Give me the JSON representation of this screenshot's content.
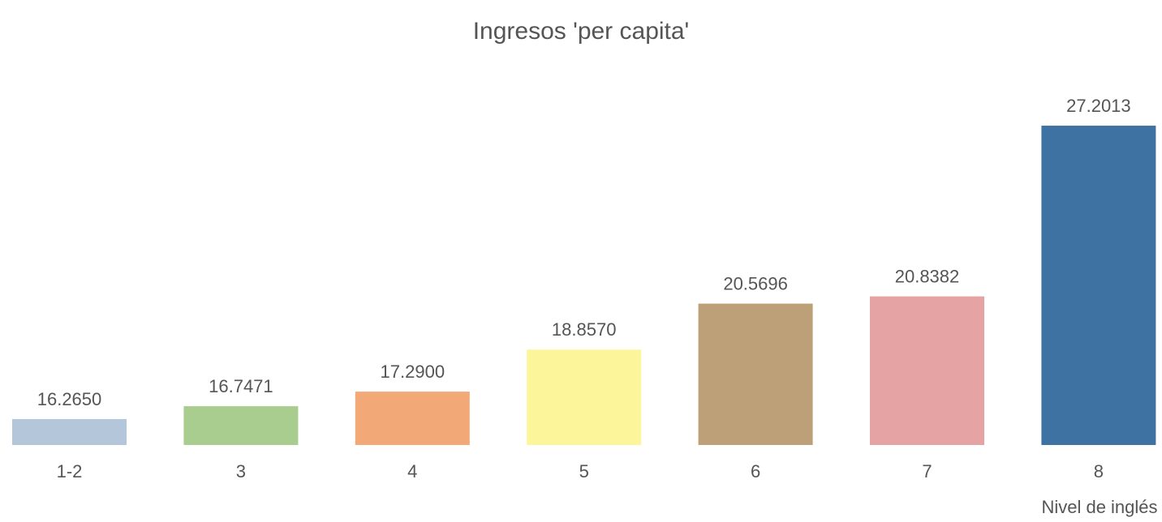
{
  "chart_data": {
    "type": "bar",
    "title": "Ingresos 'per capita'",
    "x_label": "Nivel de inglés",
    "categories": [
      "1-2",
      "3",
      "4",
      "5",
      "6",
      "7",
      "8"
    ],
    "values": [
      16.265,
      16.7471,
      17.29,
      18.857,
      20.5696,
      20.8382,
      27.2013
    ],
    "value_labels": [
      "16.2650",
      "16.7471",
      "17.2900",
      "18.8570",
      "20.5696",
      "20.8382",
      "27.2013"
    ],
    "colors": [
      "#b3c6da",
      "#a9cd8e",
      "#f2a977",
      "#fcf59a",
      "#bda077",
      "#e6a3a3",
      "#3e72a3"
    ],
    "ylim": [
      15.3,
      29
    ]
  }
}
